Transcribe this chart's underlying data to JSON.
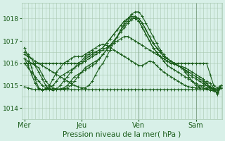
{
  "xlabel": "Pression niveau de la mer( hPa )",
  "bg_color": "#d8f0e8",
  "grid_color": "#a8c8b0",
  "line_color": "#1a5c1a",
  "marker": "+",
  "markersize": 3,
  "linewidth": 0.8,
  "ylim": [
    1013.5,
    1018.7
  ],
  "yticks": [
    1014,
    1015,
    1016,
    1017,
    1018
  ],
  "xticks": [
    0,
    48,
    96,
    144
  ],
  "xticklabels": [
    "Mer",
    "Jeu",
    "Ven",
    "Sam"
  ],
  "xlim": [
    -2,
    166
  ],
  "series": [
    {
      "x": [
        0,
        3,
        6,
        9,
        12,
        15,
        18,
        21,
        24,
        27,
        30,
        33,
        36,
        39,
        42,
        45,
        48,
        51,
        54,
        57,
        60,
        63,
        66,
        69,
        72,
        75,
        78,
        81,
        84,
        87,
        90,
        93,
        96,
        99,
        102,
        105,
        108,
        111,
        114,
        117,
        120,
        123,
        126,
        129,
        132,
        135,
        138,
        141,
        144,
        147,
        150,
        153,
        156,
        159,
        162,
        165
      ],
      "y": [
        1016.4,
        1016.3,
        1016.2,
        1016.1,
        1016.0,
        1015.9,
        1015.8,
        1015.7,
        1015.6,
        1015.5,
        1015.4,
        1015.3,
        1015.2,
        1015.1,
        1015.0,
        1014.95,
        1014.9,
        1014.9,
        1015.0,
        1015.2,
        1015.5,
        1015.8,
        1016.0,
        1016.3,
        1016.6,
        1016.9,
        1017.2,
        1017.5,
        1017.8,
        1018.0,
        1018.2,
        1018.3,
        1018.3,
        1018.1,
        1017.8,
        1017.5,
        1017.2,
        1016.9,
        1016.6,
        1016.4,
        1016.2,
        1016.1,
        1016.0,
        1015.9,
        1015.8,
        1015.7,
        1015.6,
        1015.5,
        1015.4,
        1015.3,
        1015.2,
        1015.0,
        1014.9,
        1014.8,
        1014.7,
        1014.9
      ]
    },
    {
      "x": [
        0,
        3,
        6,
        9,
        12,
        15,
        18,
        21,
        24,
        27,
        30,
        33,
        36,
        39,
        42,
        45,
        48,
        51,
        54,
        57,
        60,
        63,
        66,
        69,
        72,
        75,
        78,
        81,
        84,
        87,
        90,
        93,
        96,
        99,
        102,
        105,
        108,
        111,
        114,
        117,
        120,
        123,
        126,
        129,
        132,
        135,
        138,
        141,
        144,
        147,
        150,
        153,
        156,
        159,
        162,
        165
      ],
      "y": [
        1016.5,
        1016.4,
        1016.2,
        1015.9,
        1015.6,
        1015.3,
        1015.0,
        1014.85,
        1014.8,
        1014.85,
        1015.0,
        1015.2,
        1015.4,
        1015.6,
        1015.8,
        1016.0,
        1016.1,
        1016.3,
        1016.4,
        1016.5,
        1016.5,
        1016.6,
        1016.7,
        1016.9,
        1017.1,
        1017.3,
        1017.5,
        1017.7,
        1017.9,
        1018.0,
        1018.1,
        1018.1,
        1018.0,
        1017.8,
        1017.5,
        1017.2,
        1016.9,
        1016.7,
        1016.5,
        1016.3,
        1016.2,
        1016.1,
        1016.0,
        1015.9,
        1015.8,
        1015.7,
        1015.5,
        1015.4,
        1015.3,
        1015.2,
        1015.1,
        1015.0,
        1014.95,
        1014.9,
        1014.8,
        1015.0
      ]
    },
    {
      "x": [
        0,
        3,
        6,
        9,
        12,
        15,
        18,
        21,
        24,
        27,
        30,
        33,
        36,
        39,
        42,
        45,
        48,
        51,
        54,
        57,
        60,
        63,
        66,
        69,
        72,
        75,
        78,
        81,
        84,
        87,
        90,
        93,
        96,
        99,
        102,
        105,
        108,
        111,
        114,
        117,
        120,
        123,
        126,
        129,
        132,
        135,
        138,
        141,
        144,
        147,
        150,
        153,
        156,
        159,
        162,
        165
      ],
      "y": [
        1016.7,
        1016.3,
        1015.8,
        1015.3,
        1014.9,
        1014.8,
        1014.85,
        1014.9,
        1015.0,
        1015.2,
        1015.4,
        1015.5,
        1015.6,
        1015.7,
        1015.8,
        1015.9,
        1016.0,
        1016.2,
        1016.3,
        1016.4,
        1016.5,
        1016.6,
        1016.7,
        1016.9,
        1017.1,
        1017.3,
        1017.5,
        1017.7,
        1017.9,
        1018.0,
        1018.1,
        1018.0,
        1017.9,
        1017.6,
        1017.3,
        1017.0,
        1016.7,
        1016.5,
        1016.3,
        1016.1,
        1015.9,
        1015.8,
        1015.7,
        1015.6,
        1015.5,
        1015.4,
        1015.3,
        1015.2,
        1015.1,
        1015.0,
        1015.0,
        1014.9,
        1014.9,
        1014.85,
        1014.8,
        1015.0
      ]
    },
    {
      "x": [
        0,
        3,
        6,
        9,
        12,
        15,
        18,
        21,
        24,
        27,
        30,
        33,
        36,
        39,
        42,
        45,
        48,
        51,
        54,
        57,
        60,
        63,
        66,
        69,
        72,
        75,
        78,
        81,
        84,
        87,
        90,
        93,
        96,
        99,
        102,
        105,
        108,
        111,
        114,
        117,
        120,
        123,
        126,
        129,
        132,
        135,
        138,
        141,
        144,
        147,
        150,
        153,
        156,
        159,
        162,
        165
      ],
      "y": [
        1016.2,
        1016.1,
        1016.0,
        1015.9,
        1015.8,
        1015.5,
        1015.2,
        1015.0,
        1014.9,
        1014.85,
        1014.85,
        1014.85,
        1014.9,
        1015.0,
        1015.2,
        1015.4,
        1015.6,
        1015.8,
        1015.9,
        1016.0,
        1016.1,
        1016.2,
        1016.4,
        1016.6,
        1016.8,
        1017.0,
        1017.2,
        1017.4,
        1017.6,
        1017.8,
        1017.95,
        1018.05,
        1018.0,
        1017.8,
        1017.5,
        1017.2,
        1016.9,
        1016.7,
        1016.5,
        1016.3,
        1016.2,
        1016.1,
        1016.0,
        1015.9,
        1015.8,
        1015.6,
        1015.4,
        1015.2,
        1015.0,
        1014.95,
        1014.9,
        1014.85,
        1014.8,
        1014.75,
        1014.7,
        1014.95
      ]
    },
    {
      "x": [
        0,
        3,
        6,
        9,
        12,
        15,
        18,
        21,
        24,
        27,
        30,
        33,
        36,
        39,
        42,
        45,
        48,
        51,
        54,
        57,
        60,
        63,
        66,
        69,
        72,
        75,
        78,
        81,
        84,
        87,
        90,
        93,
        96,
        99,
        102,
        105,
        108,
        111,
        114,
        117,
        120,
        123,
        126,
        129,
        132,
        135,
        138,
        141,
        144,
        147,
        150,
        153,
        156,
        159,
        162,
        165
      ],
      "y": [
        1016.0,
        1015.8,
        1015.6,
        1015.4,
        1015.2,
        1015.0,
        1014.9,
        1014.85,
        1014.82,
        1014.82,
        1014.85,
        1014.9,
        1015.0,
        1015.2,
        1015.4,
        1015.5,
        1015.6,
        1015.7,
        1015.8,
        1015.9,
        1016.0,
        1016.2,
        1016.4,
        1016.6,
        1016.8,
        1017.0,
        1017.2,
        1017.5,
        1017.7,
        1017.9,
        1018.0,
        1018.0,
        1017.9,
        1017.6,
        1017.3,
        1017.0,
        1016.7,
        1016.5,
        1016.3,
        1016.2,
        1016.1,
        1016.0,
        1015.95,
        1015.9,
        1015.85,
        1015.8,
        1015.7,
        1015.6,
        1015.5,
        1015.4,
        1015.3,
        1015.1,
        1014.95,
        1014.8,
        1014.65,
        1014.9
      ]
    },
    {
      "x": [
        0,
        3,
        6,
        9,
        12,
        15,
        18,
        21,
        24,
        27,
        30,
        33,
        36,
        39,
        42,
        45,
        48,
        51,
        54,
        57,
        60,
        63,
        66,
        69,
        72,
        75,
        78,
        81,
        84,
        87,
        90,
        93,
        96,
        99,
        102,
        105,
        108,
        111,
        114,
        117,
        120,
        123,
        126,
        129,
        132,
        135,
        138,
        141,
        144,
        147,
        150,
        153,
        156,
        159,
        162,
        165
      ],
      "y": [
        1014.95,
        1014.9,
        1014.85,
        1014.82,
        1014.82,
        1014.82,
        1014.82,
        1014.82,
        1014.82,
        1014.82,
        1014.82,
        1014.82,
        1014.82,
        1014.82,
        1014.82,
        1014.82,
        1014.82,
        1014.82,
        1014.82,
        1014.82,
        1014.82,
        1014.82,
        1014.82,
        1014.82,
        1014.82,
        1014.82,
        1014.82,
        1014.82,
        1014.82,
        1014.82,
        1014.82,
        1014.82,
        1014.82,
        1014.82,
        1014.82,
        1014.82,
        1014.82,
        1014.82,
        1014.82,
        1014.82,
        1014.82,
        1014.82,
        1014.82,
        1014.82,
        1014.82,
        1014.82,
        1014.82,
        1014.82,
        1014.82,
        1014.82,
        1014.82,
        1014.82,
        1014.82,
        1014.82,
        1014.82,
        1014.95
      ]
    },
    {
      "x": [
        0,
        3,
        6,
        9,
        12,
        15,
        18,
        21,
        24,
        27,
        30,
        33,
        36,
        39,
        42,
        45,
        48,
        51,
        54,
        57,
        60,
        63,
        66,
        69,
        72,
        75,
        78,
        81,
        84,
        87,
        90,
        93,
        96,
        99,
        102,
        105,
        108,
        111,
        114,
        117,
        120,
        123,
        126,
        129,
        132,
        135,
        138,
        141,
        144,
        147,
        150,
        153,
        156,
        159,
        162,
        165
      ],
      "y": [
        1016.2,
        1015.9,
        1015.5,
        1015.1,
        1014.85,
        1014.82,
        1014.85,
        1015.0,
        1015.3,
        1015.6,
        1015.8,
        1016.0,
        1016.1,
        1016.2,
        1016.3,
        1016.3,
        1016.3,
        1016.4,
        1016.5,
        1016.6,
        1016.7,
        1016.8,
        1016.85,
        1016.8,
        1016.7,
        1016.6,
        1016.5,
        1016.4,
        1016.3,
        1016.2,
        1016.1,
        1016.0,
        1015.9,
        1015.9,
        1016.0,
        1016.1,
        1016.05,
        1015.9,
        1015.75,
        1015.6,
        1015.5,
        1015.4,
        1015.3,
        1015.2,
        1015.1,
        1015.0,
        1014.95,
        1014.92,
        1014.9,
        1014.9,
        1015.0,
        1015.2,
        1015.1,
        1014.9,
        1014.6,
        1014.95
      ]
    },
    {
      "x": [
        0,
        3,
        6,
        9,
        12,
        15,
        18,
        21,
        24,
        27,
        30,
        33,
        36,
        39,
        42,
        45,
        48,
        51,
        54,
        57,
        60,
        63,
        66,
        69,
        72,
        75,
        78,
        81,
        84,
        87,
        90,
        93,
        96,
        99,
        102,
        105,
        108,
        111,
        114,
        117,
        120,
        123,
        126,
        129,
        132,
        135,
        138,
        141,
        144,
        147,
        150,
        153,
        156,
        159,
        162,
        165
      ],
      "y": [
        1016.0,
        1016.0,
        1016.0,
        1016.0,
        1016.0,
        1016.0,
        1016.0,
        1016.0,
        1016.0,
        1016.0,
        1016.0,
        1016.0,
        1016.0,
        1016.0,
        1016.0,
        1016.0,
        1016.0,
        1016.1,
        1016.2,
        1016.3,
        1016.4,
        1016.5,
        1016.6,
        1016.7,
        1016.8,
        1016.9,
        1017.0,
        1017.1,
        1017.2,
        1017.2,
        1017.1,
        1017.0,
        1016.9,
        1016.8,
        1016.7,
        1016.6,
        1016.5,
        1016.4,
        1016.3,
        1016.2,
        1016.1,
        1016.0,
        1016.0,
        1016.0,
        1016.0,
        1016.0,
        1016.0,
        1016.0,
        1016.0,
        1016.0,
        1016.0,
        1016.0,
        1015.5,
        1015.0,
        1014.9,
        1015.0
      ]
    }
  ],
  "vlines": [
    48,
    96,
    144
  ]
}
